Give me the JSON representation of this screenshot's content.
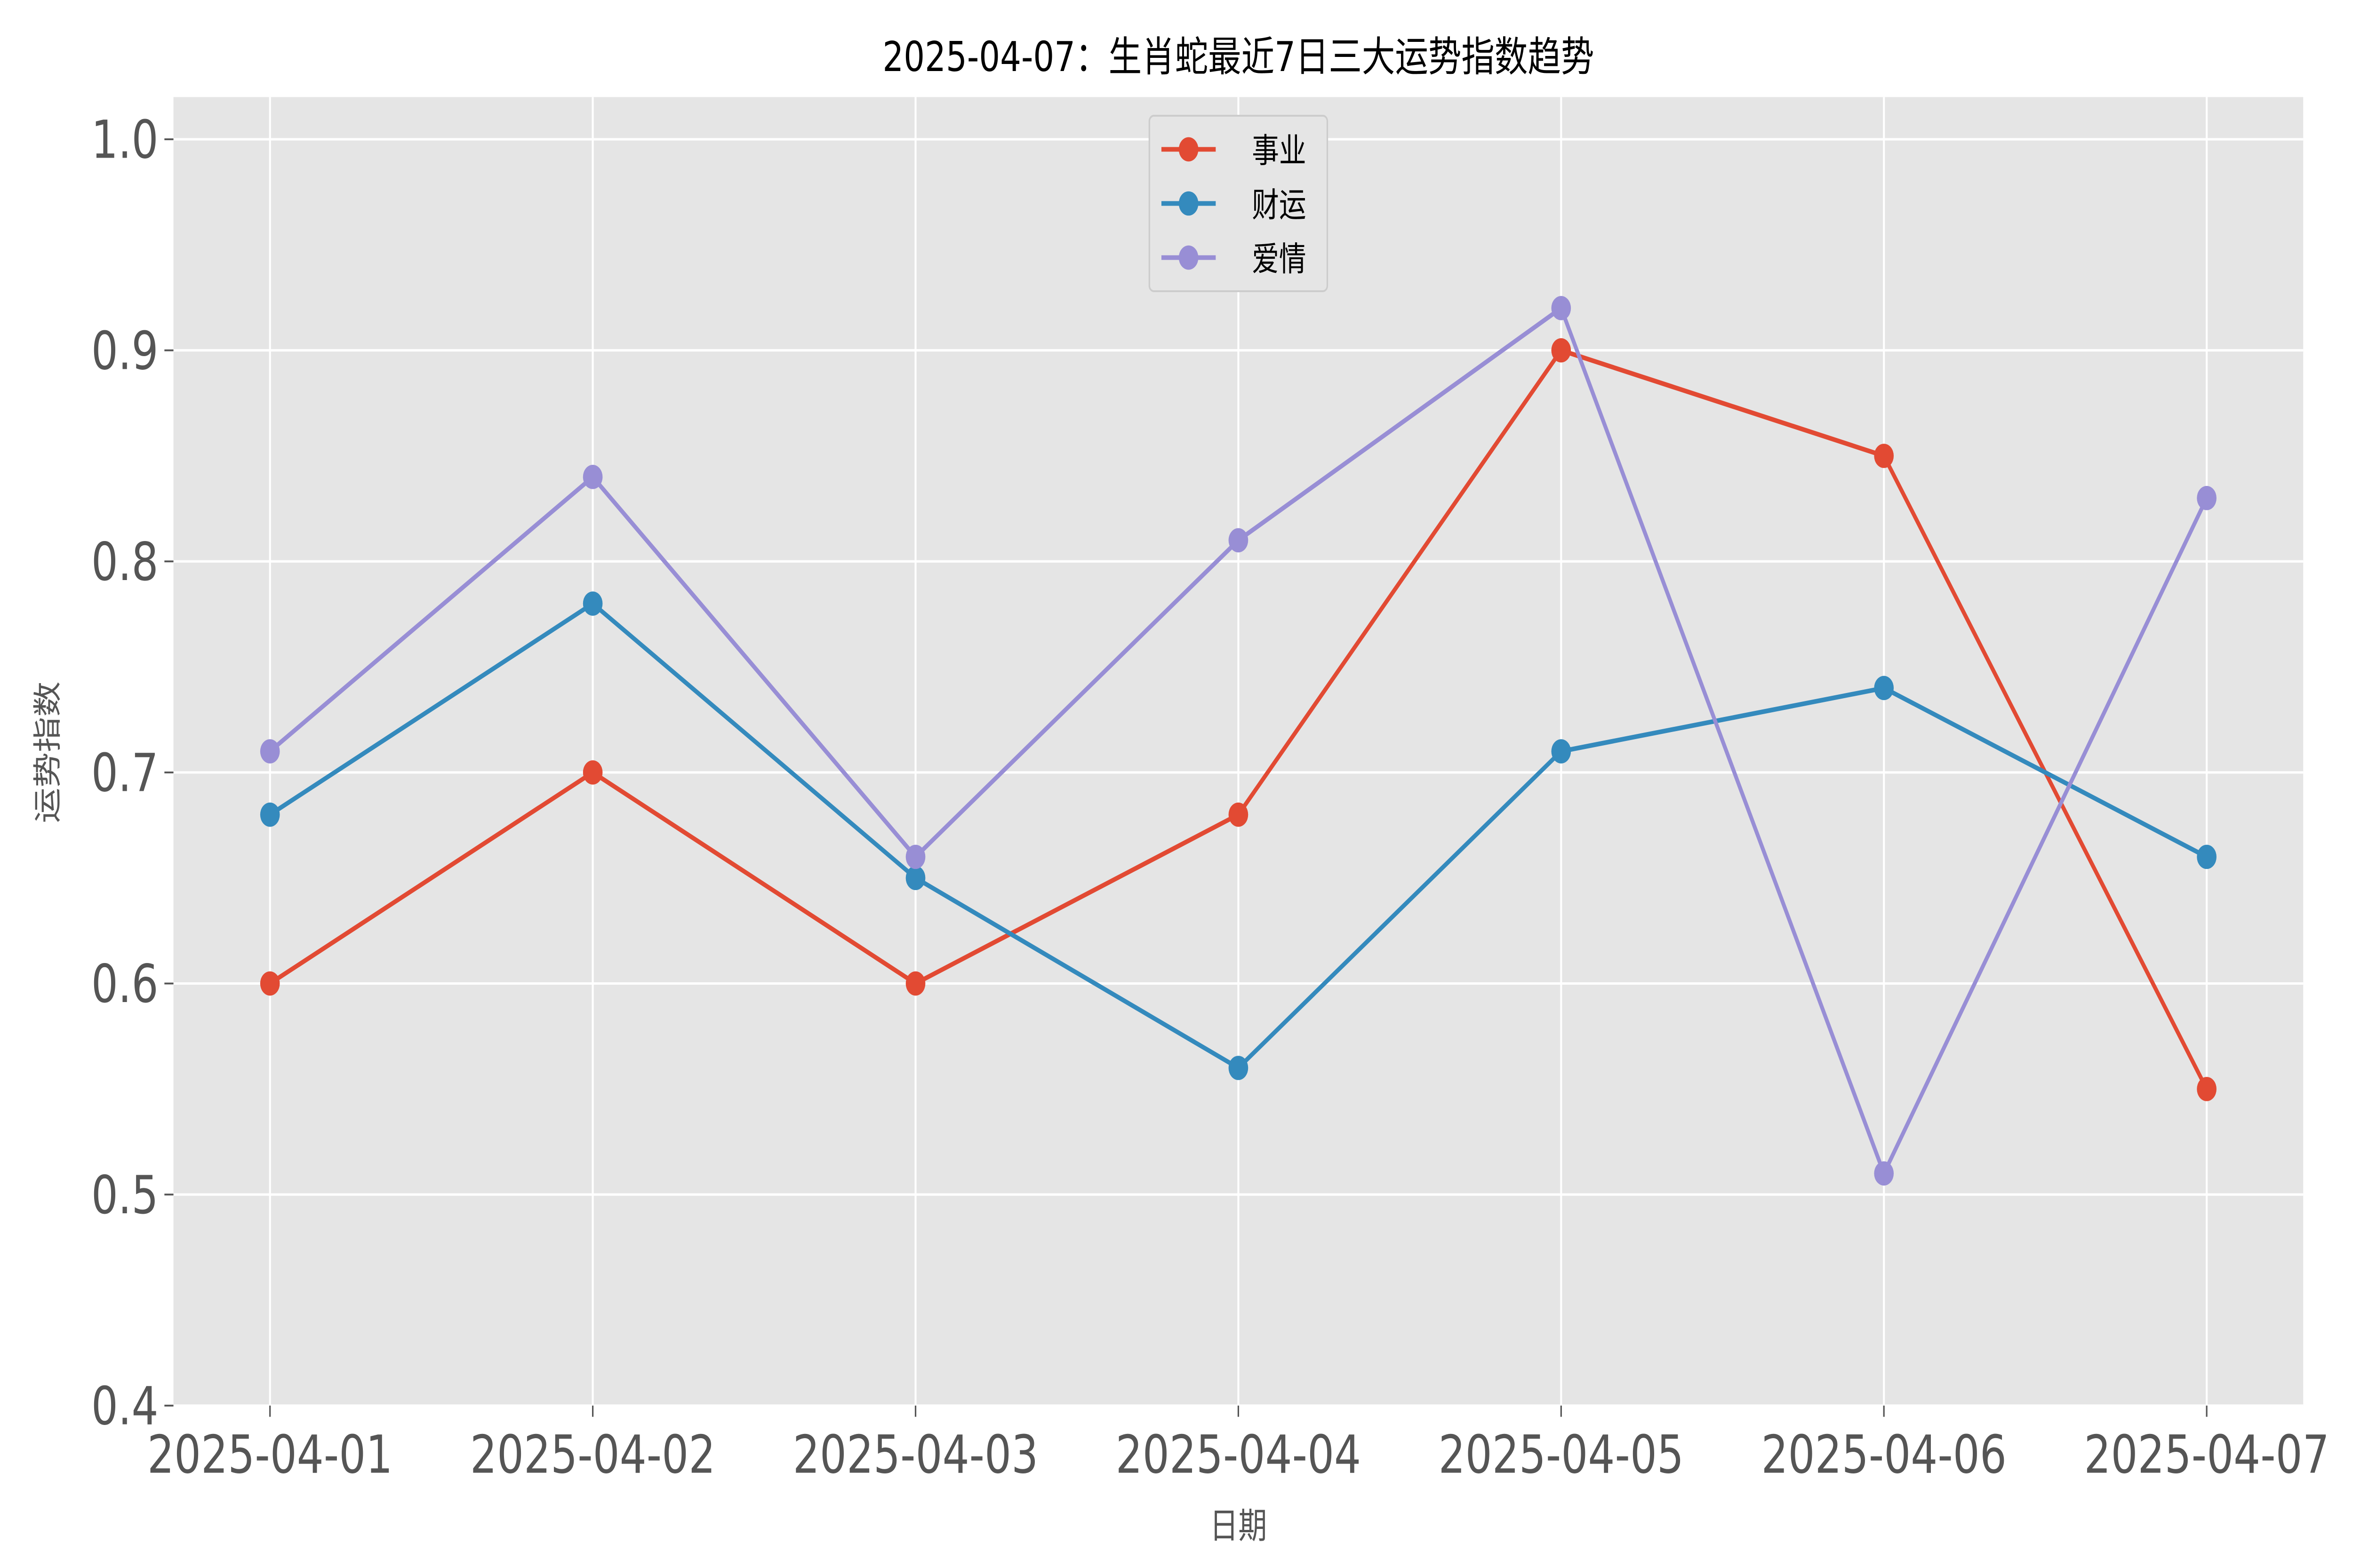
{
  "chart_data": {
    "type": "line",
    "title": "2025-04-07：生肖蛇最近7日三大运势指数趋势",
    "xlabel": "日期",
    "ylabel": "运势指数",
    "categories": [
      "2025-04-01",
      "2025-04-02",
      "2025-04-03",
      "2025-04-04",
      "2025-04-05",
      "2025-04-06",
      "2025-04-07"
    ],
    "ylim": [
      0.4,
      1.02
    ],
    "yticks": [
      "0.4",
      "0.5",
      "0.6",
      "0.7",
      "0.8",
      "0.9",
      "1.0"
    ],
    "grid": true,
    "legend_position": "top-center",
    "background": "#e5e5e5",
    "series": [
      {
        "name": "事业",
        "color": "#e24a33",
        "values": [
          0.6,
          0.7,
          0.6,
          0.68,
          0.9,
          0.85,
          0.55
        ]
      },
      {
        "name": "财运",
        "color": "#348abd",
        "values": [
          0.68,
          0.78,
          0.65,
          0.56,
          0.71,
          0.74,
          0.66
        ]
      },
      {
        "name": "爱情",
        "color": "#988ed5",
        "values": [
          0.71,
          0.84,
          0.66,
          0.81,
          0.92,
          0.51,
          0.83
        ]
      }
    ]
  }
}
